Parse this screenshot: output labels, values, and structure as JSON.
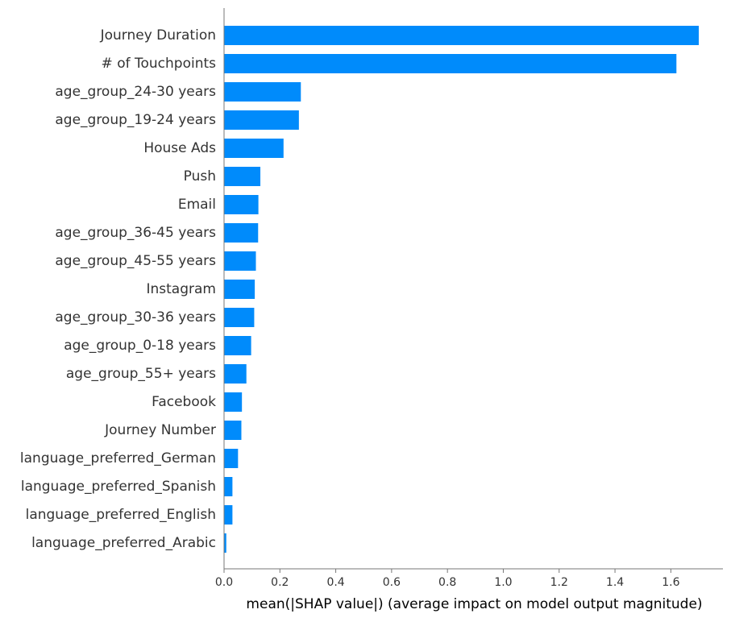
{
  "chart_data": {
    "type": "bar",
    "orientation": "horizontal",
    "categories": [
      "Journey Duration",
      "# of Touchpoints",
      "age_group_24-30 years",
      "age_group_19-24 years",
      "House Ads",
      "Push",
      "Email",
      "age_group_36-45 years",
      "age_group_45-55 years",
      "Instagram",
      "age_group_30-36 years",
      "age_group_0-18 years",
      "age_group_55+ years",
      "Facebook",
      "Journey Number",
      "language_preferred_German",
      "language_preferred_Spanish",
      "language_preferred_English",
      "language_preferred_Arabic"
    ],
    "values": [
      1.7,
      1.62,
      0.275,
      0.268,
      0.213,
      0.13,
      0.123,
      0.122,
      0.114,
      0.11,
      0.108,
      0.097,
      0.08,
      0.064,
      0.062,
      0.05,
      0.03,
      0.03,
      0.008
    ],
    "xlabel": "mean(|SHAP value|) (average impact on model output magnitude)",
    "ylabel": "",
    "title": "",
    "xlim": [
      0,
      1.8
    ],
    "xticks": [
      "0.0",
      "0.2",
      "0.4",
      "0.6",
      "0.8",
      "1.0",
      "1.2",
      "1.4",
      "1.6"
    ],
    "grid": false,
    "legend": "none",
    "bar_color": "#008bfb",
    "axis_color": "#777777",
    "text_color": "#333333"
  }
}
